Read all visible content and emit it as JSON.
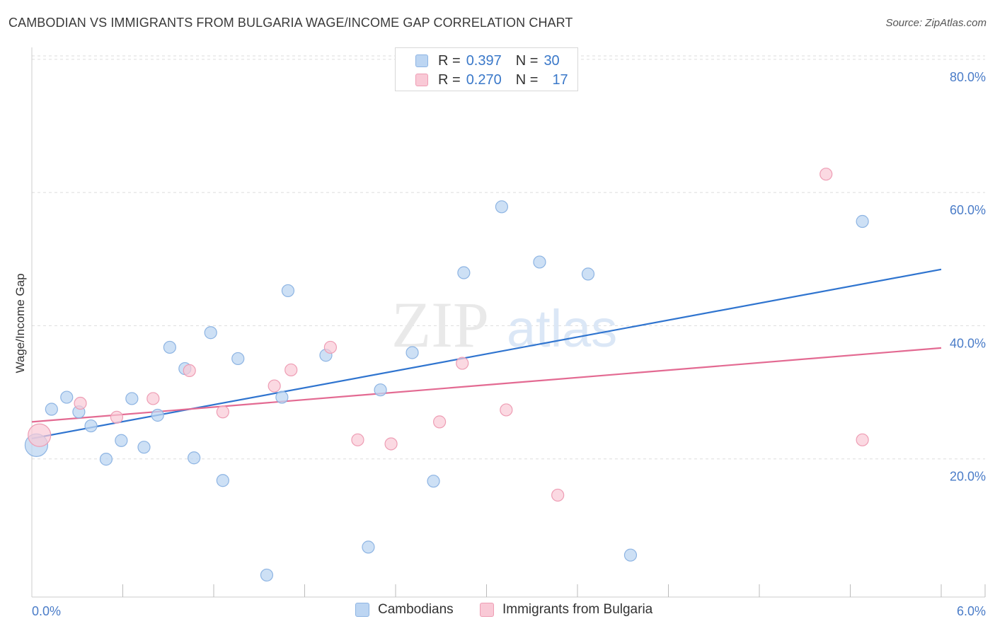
{
  "header": {
    "title": "CAMBODIAN VS IMMIGRANTS FROM BULGARIA WAGE/INCOME GAP CORRELATION CHART",
    "source": "Source: ZipAtlas.com"
  },
  "watermark": {
    "zip": "ZIP",
    "atlas": "atlas"
  },
  "legend": {
    "rows": [
      {
        "r_label": "R =",
        "r_value": "0.397",
        "n_label": "N =",
        "n_value": "30"
      },
      {
        "r_label": "R =",
        "r_value": "0.270",
        "n_label": "N =",
        "n_value": "17"
      }
    ]
  },
  "colors": {
    "blue_fill": "#bcd5f2",
    "blue_stroke": "#8db4e3",
    "blue_line": "#2f74cf",
    "pink_fill": "#f9c9d6",
    "pink_stroke": "#ee9db4",
    "pink_line": "#e36a92",
    "tick_text": "#4a7cc8",
    "grid": "#dddddd"
  },
  "chart_data": {
    "type": "scatter",
    "title": "CAMBODIAN VS IMMIGRANTS FROM BULGARIA WAGE/INCOME GAP CORRELATION CHART",
    "xlabel": "",
    "ylabel": "Wage/Income Gap",
    "xlim": [
      0,
      6
    ],
    "ylim": [
      0,
      82
    ],
    "x_tick_labels": [
      "0.0%",
      "6.0%"
    ],
    "y_ticks": [
      20,
      40,
      60,
      80
    ],
    "y_tick_labels": [
      "20.0%",
      "40.0%",
      "60.0%",
      "80.0%"
    ],
    "grid": true,
    "legend_position": "top-center",
    "series": [
      {
        "name": "Cambodians",
        "r": 0.397,
        "n": 30,
        "trend": {
          "x0": 0.0,
          "y0": 23.8,
          "x1": 6.0,
          "y1": 49.2
        },
        "points": [
          {
            "x": 0.03,
            "y": 22.8,
            "size": "large"
          },
          {
            "x": 0.13,
            "y": 28.2
          },
          {
            "x": 0.23,
            "y": 30.0
          },
          {
            "x": 0.31,
            "y": 27.8
          },
          {
            "x": 0.39,
            "y": 25.7
          },
          {
            "x": 0.49,
            "y": 20.7
          },
          {
            "x": 0.59,
            "y": 23.5
          },
          {
            "x": 0.66,
            "y": 29.8
          },
          {
            "x": 0.74,
            "y": 22.5
          },
          {
            "x": 0.83,
            "y": 27.3
          },
          {
            "x": 0.91,
            "y": 37.5
          },
          {
            "x": 1.01,
            "y": 34.3
          },
          {
            "x": 1.07,
            "y": 20.9
          },
          {
            "x": 1.18,
            "y": 39.7
          },
          {
            "x": 1.26,
            "y": 17.5
          },
          {
            "x": 1.36,
            "y": 35.8
          },
          {
            "x": 1.55,
            "y": 3.3
          },
          {
            "x": 1.65,
            "y": 30.0
          },
          {
            "x": 1.69,
            "y": 46.0
          },
          {
            "x": 1.94,
            "y": 36.3
          },
          {
            "x": 2.22,
            "y": 7.5
          },
          {
            "x": 2.3,
            "y": 31.1
          },
          {
            "x": 2.51,
            "y": 36.7
          },
          {
            "x": 2.65,
            "y": 17.4
          },
          {
            "x": 2.85,
            "y": 48.7
          },
          {
            "x": 3.1,
            "y": 58.6
          },
          {
            "x": 3.35,
            "y": 50.3
          },
          {
            "x": 3.67,
            "y": 48.5
          },
          {
            "x": 3.95,
            "y": 6.3
          },
          {
            "x": 5.48,
            "y": 56.4
          }
        ]
      },
      {
        "name": "Immigrants from Bulgaria",
        "r": 0.27,
        "n": 17,
        "trend": {
          "x0": 0.0,
          "y0": 26.3,
          "x1": 6.0,
          "y1": 37.4
        },
        "points": [
          {
            "x": 0.05,
            "y": 24.3,
            "size": "large"
          },
          {
            "x": 0.32,
            "y": 29.1
          },
          {
            "x": 0.56,
            "y": 27.0
          },
          {
            "x": 0.8,
            "y": 29.8
          },
          {
            "x": 1.04,
            "y": 34.0
          },
          {
            "x": 1.26,
            "y": 27.8
          },
          {
            "x": 1.6,
            "y": 31.7
          },
          {
            "x": 1.71,
            "y": 34.1
          },
          {
            "x": 1.97,
            "y": 37.5
          },
          {
            "x": 2.15,
            "y": 23.6
          },
          {
            "x": 2.37,
            "y": 23.0
          },
          {
            "x": 2.69,
            "y": 26.3
          },
          {
            "x": 2.84,
            "y": 35.1
          },
          {
            "x": 3.13,
            "y": 28.1
          },
          {
            "x": 3.47,
            "y": 15.3
          },
          {
            "x": 5.24,
            "y": 63.5
          },
          {
            "x": 5.48,
            "y": 23.6
          }
        ]
      }
    ]
  }
}
